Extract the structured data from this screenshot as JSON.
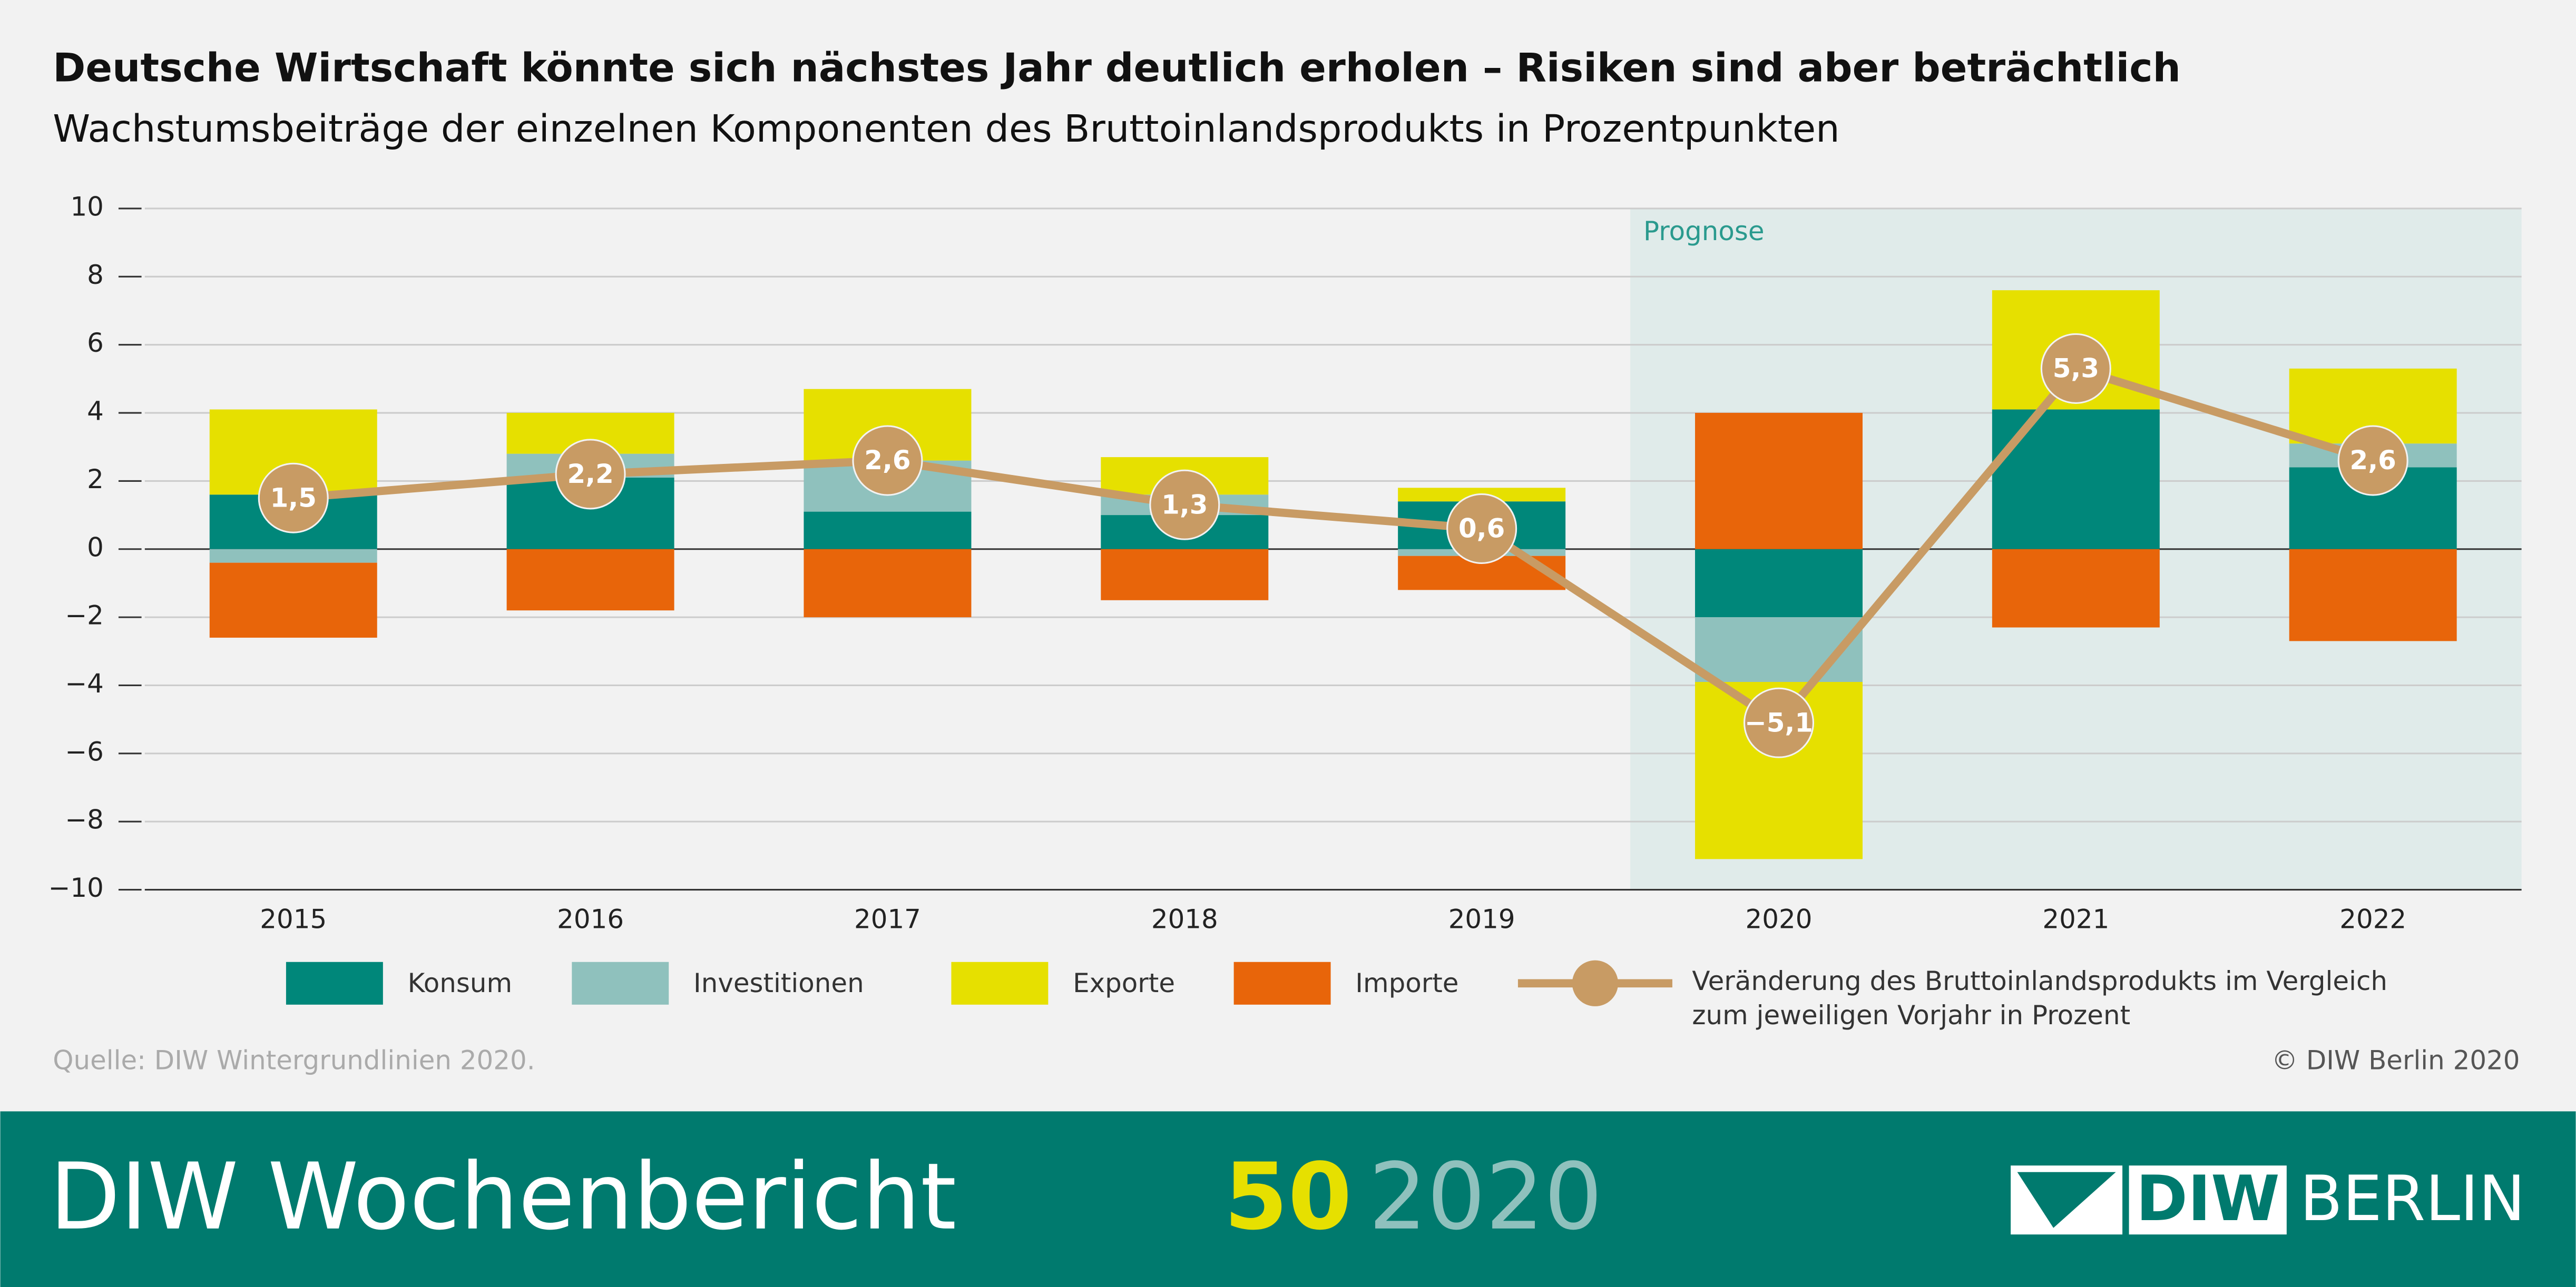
{
  "chart_data": {
    "type": "bar",
    "stacked": true,
    "title": "Deutsche Wirtschaft könnte sich nächstes Jahr deutlich erholen – Risiken sind aber beträchtlich",
    "subtitle": "Wachstumsbeiträge der einzelnen Komponenten des Bruttoinlandsprodukts in Prozentpunkten",
    "annotation": "Prognose",
    "categories": [
      "2015",
      "2016",
      "2017",
      "2018",
      "2019",
      "2020",
      "2021",
      "2022"
    ],
    "series": [
      {
        "name": "Konsum",
        "color": "#00877a",
        "values": [
          1.6,
          2.1,
          1.1,
          1.0,
          1.4,
          -2.0,
          4.1,
          2.4
        ]
      },
      {
        "name": "Investitionen",
        "color": "#8fc1bd",
        "values": [
          -0.4,
          0.7,
          1.5,
          0.6,
          -0.2,
          -1.9,
          0,
          0.7
        ]
      },
      {
        "name": "Exporte",
        "color": "#e6e000",
        "values": [
          2.5,
          1.2,
          2.1,
          1.1,
          0.4,
          -5.2,
          3.5,
          2.2
        ]
      },
      {
        "name": "Importe",
        "color": "#e8650a",
        "values": [
          -2.2,
          -1.8,
          -2.0,
          -1.5,
          -1.0,
          4.0,
          -2.3,
          -2.7
        ]
      },
      {
        "name": "Veränderung des Bruttoinlandsprodukts im Vergleich zum jeweiligen Vorjahr in Prozent",
        "type": "line",
        "color": "#c89b64",
        "values": [
          1.5,
          2.2,
          2.6,
          1.3,
          0.6,
          -5.1,
          5.3,
          2.6
        ],
        "value_labels": [
          "1,5",
          "2,2",
          "2,6",
          "1,3",
          "0,6",
          "−5,1",
          "5,3",
          "2,6"
        ]
      }
    ],
    "ylim": [
      -10,
      10
    ],
    "yticks": [
      {
        "value": -10,
        "label": "−10"
      },
      {
        "value": -8,
        "label": "−8"
      },
      {
        "value": -6,
        "label": "−6"
      },
      {
        "value": -4,
        "label": "−4"
      },
      {
        "value": -2,
        "label": "−2"
      },
      0,
      2,
      4,
      6,
      8,
      10
    ],
    "grid": true,
    "source": "Quelle: DIW Wintergrundlinien 2020.",
    "copyright": "© DIW Berlin 2020"
  },
  "footer": {
    "publication": "DIW Wochenbericht",
    "issue": "50",
    "year": "2020",
    "logo_left": "DIW",
    "logo_right": "BERLIN"
  }
}
